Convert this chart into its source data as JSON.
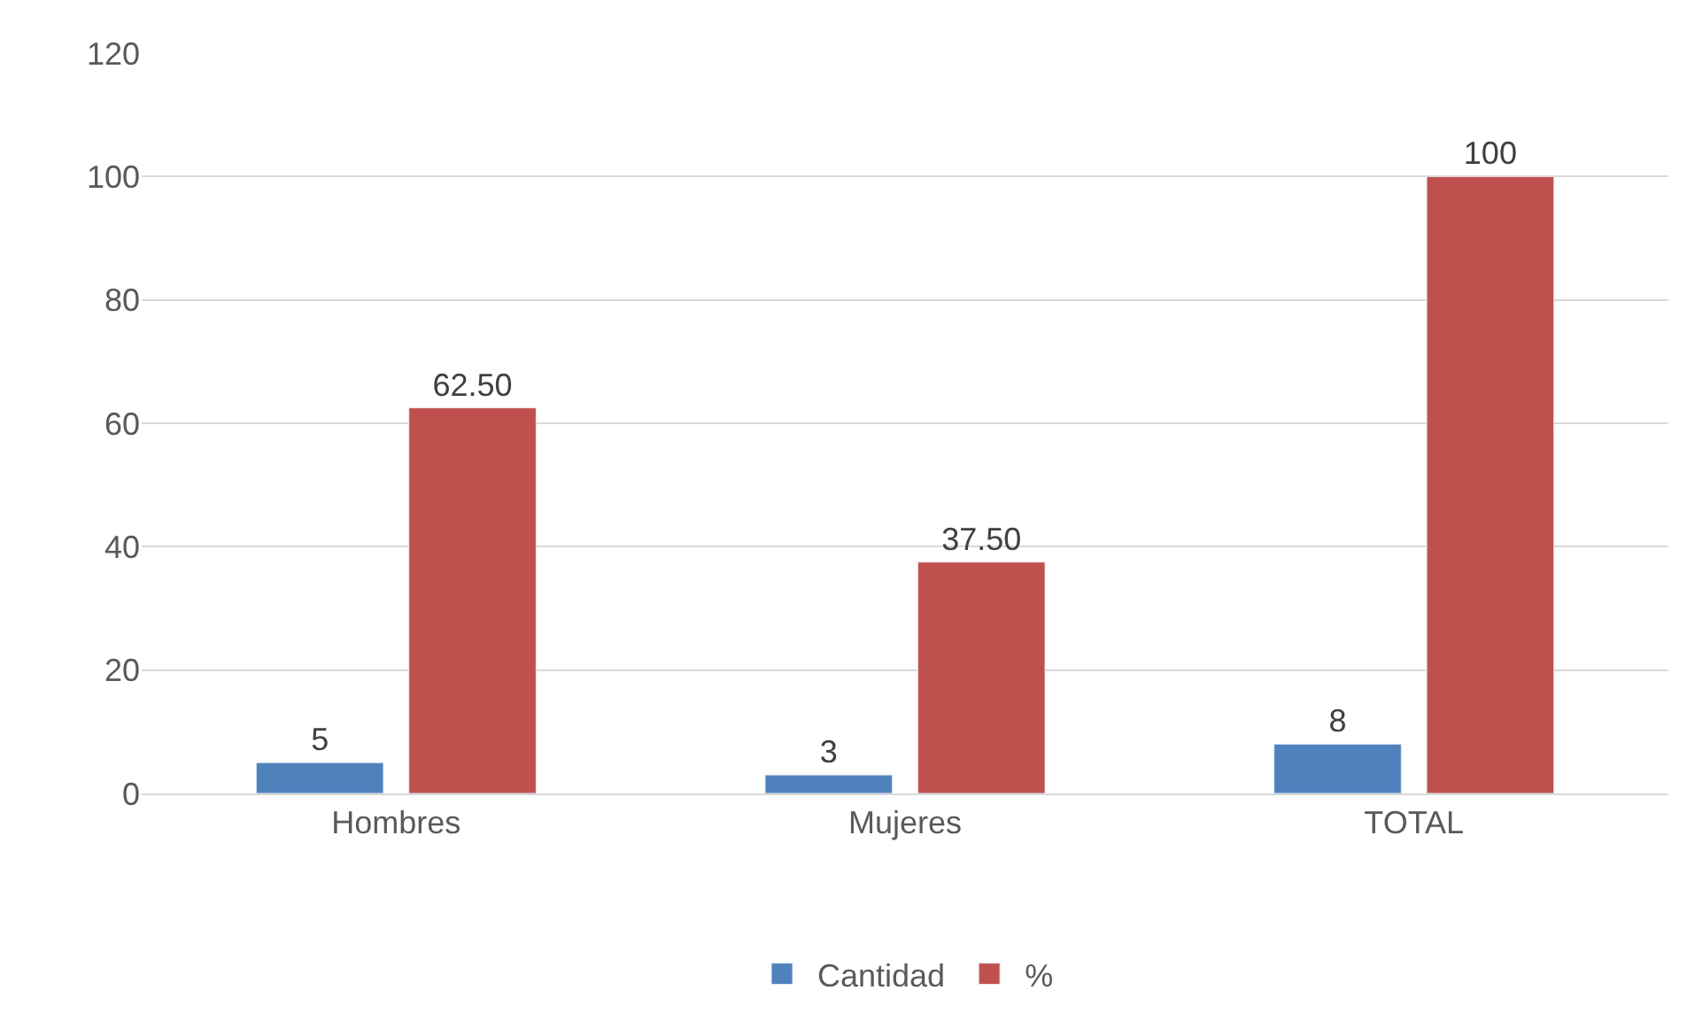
{
  "chart_data": {
    "type": "bar",
    "categories": [
      "Hombres",
      "Mujeres",
      "TOTAL"
    ],
    "series": [
      {
        "name": "Cantidad",
        "color": "#4f81bd",
        "values": [
          5,
          3,
          8
        ],
        "value_labels": [
          "5",
          "3",
          "8"
        ]
      },
      {
        "name": "%",
        "color": "#c0504d",
        "values": [
          62.5,
          37.5,
          100
        ],
        "value_labels": [
          "62.50",
          "37.50",
          "100"
        ]
      }
    ],
    "ylim": [
      0,
      120
    ],
    "yticks": [
      0,
      20,
      40,
      60,
      80,
      100,
      120
    ],
    "grid": "y",
    "legend": "bottom"
  }
}
